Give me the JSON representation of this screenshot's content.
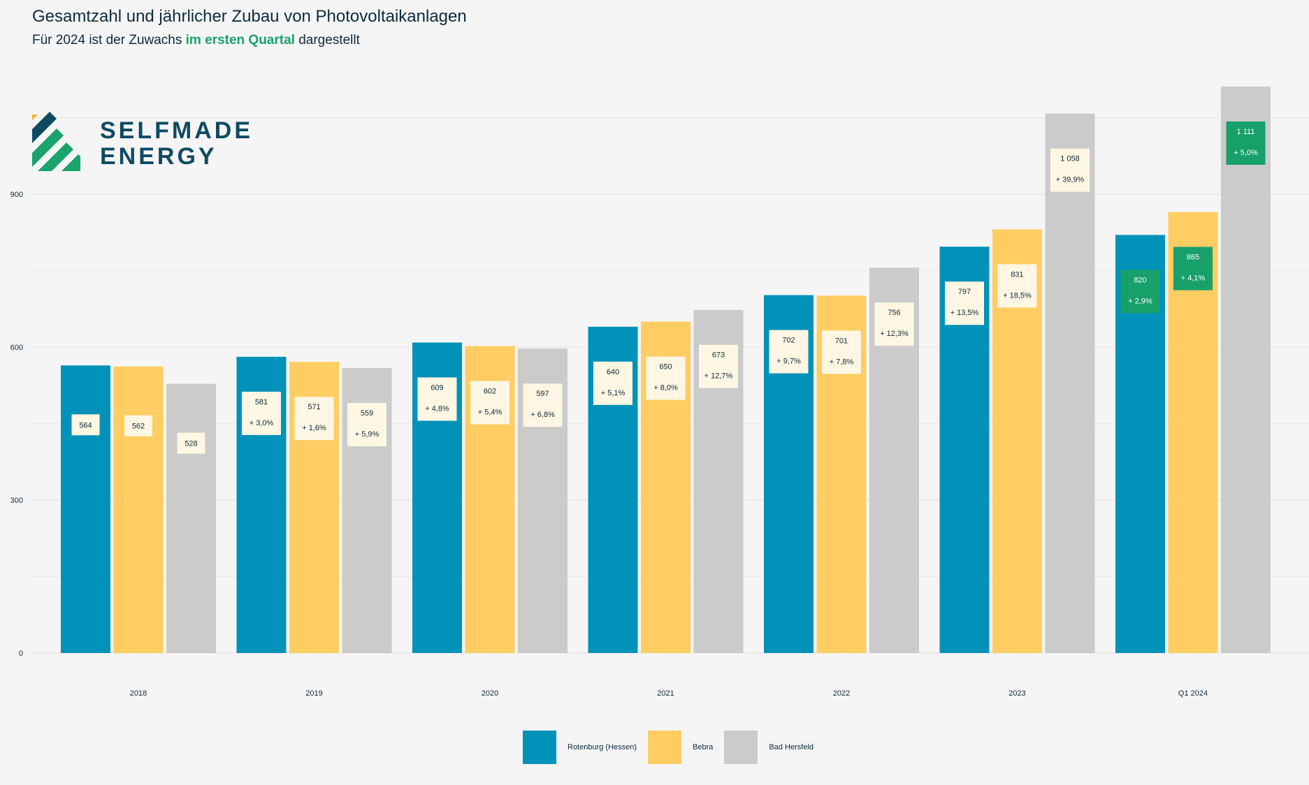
{
  "title": "Gesamtzahl und jährlicher Zubau von Photovoltaikanlagen",
  "subtitle": {
    "part1": "Für 2024 ist der Zuwachs",
    "highlight": "im ersten Quartal",
    "part2": "dargestellt"
  },
  "logo": {
    "line1": "SELFMADE",
    "line2": "ENERGY"
  },
  "colors": {
    "Rotenburg (Hessen)": "#0092b8",
    "Bebra": "#ffcd62",
    "Bad Hersfeld": "#cbcbcb",
    "label_bg": "#fff6e3",
    "label_bg_q1": "#17a069",
    "text": "#0d2b3e",
    "logo_dark": "#0f4a62",
    "logo_green": "#1aa36b",
    "logo_yellow": "#f5b522"
  },
  "chart_data": {
    "type": "bar",
    "title": "Gesamtzahl und jährlicher Zubau von Photovoltaikanlagen",
    "xlabel": "",
    "ylabel": "",
    "ylim": [
      0,
      1111
    ],
    "yticks": [
      0,
      300,
      600,
      900
    ],
    "grid": true,
    "legend_position": "bottom-center",
    "categories": [
      "2018",
      "2019",
      "2020",
      "2021",
      "2022",
      "2023",
      "Q1 2024"
    ],
    "series": [
      {
        "name": "Rotenburg (Hessen)",
        "values": [
          564,
          581,
          609,
          640,
          702,
          797,
          820
        ],
        "labels": [
          "564",
          "581",
          "609",
          "640",
          "702",
          "797",
          "820"
        ],
        "growth": [
          null,
          "+ 3,0%",
          "+ 4,8%",
          "+ 5,1%",
          "+ 9,7%",
          "+ 13,5%",
          "+ 2,9%"
        ]
      },
      {
        "name": "Bebra",
        "values": [
          562,
          571,
          602,
          650,
          701,
          831,
          865
        ],
        "labels": [
          "562",
          "571",
          "602",
          "650",
          "701",
          "831",
          "865"
        ],
        "growth": [
          null,
          "+ 1,6%",
          "+ 5,4%",
          "+ 8,0%",
          "+ 7,8%",
          "+ 18,5%",
          "+ 4,1%"
        ]
      },
      {
        "name": "Bad Hersfeld",
        "values": [
          528,
          559,
          597,
          673,
          756,
          1058,
          1111
        ],
        "labels": [
          "528",
          "559",
          "597",
          "673",
          "756",
          "1 058",
          "1 111"
        ],
        "growth": [
          null,
          "+ 5,9%",
          "+ 6,8%",
          "+ 12,7%",
          "+ 12,3%",
          "+ 39,9%",
          "+ 5,0%"
        ]
      }
    ]
  }
}
